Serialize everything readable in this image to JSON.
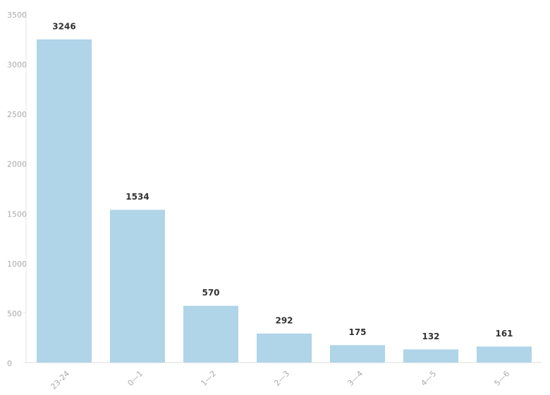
{
  "chart_data": {
    "type": "bar",
    "categories": [
      "23-24",
      "0—1",
      "1—2",
      "2—3",
      "3—4",
      "4—5",
      "5—6"
    ],
    "values": [
      3246,
      1534,
      570,
      292,
      175,
      132,
      161
    ],
    "color": "#b0d4e8",
    "ylim": [
      0,
      3500
    ],
    "yticks": [
      0,
      500,
      1000,
      1500,
      2000,
      2500,
      3000,
      3500
    ],
    "grid": false
  }
}
